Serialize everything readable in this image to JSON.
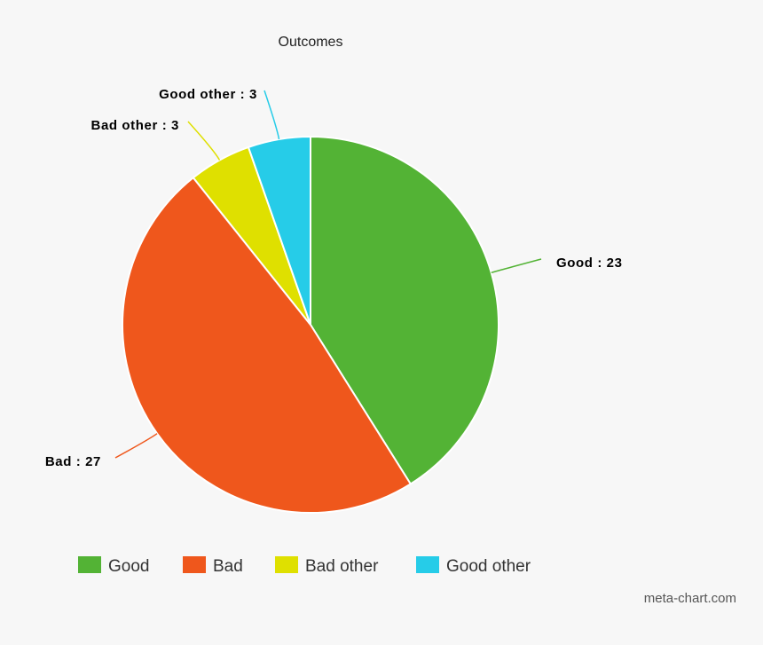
{
  "chart_data": {
    "type": "pie",
    "title": "Outcomes",
    "slices": [
      {
        "name": "Good",
        "value": 23,
        "label": "Good : 23",
        "color": "#53b335"
      },
      {
        "name": "Bad",
        "value": 27,
        "label": "Bad : 27",
        "color": "#ef571c"
      },
      {
        "name": "Bad other",
        "value": 3,
        "label": "Bad other : 3",
        "color": "#dfe000"
      },
      {
        "name": "Good other",
        "value": 3,
        "label": "Good other : 3",
        "color": "#26cce8"
      }
    ],
    "legend": {
      "position": "bottom"
    }
  },
  "credit": "meta-chart.com"
}
